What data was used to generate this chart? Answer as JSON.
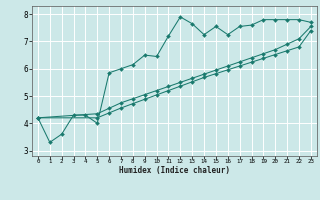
{
  "xlabel": "Humidex (Indice chaleur)",
  "bg_color": "#cce8e8",
  "grid_color": "#ffffff",
  "line_color": "#1a7a6e",
  "xlim": [
    -0.5,
    23.5
  ],
  "ylim": [
    2.8,
    8.3
  ],
  "xticks": [
    0,
    1,
    2,
    3,
    4,
    5,
    6,
    7,
    8,
    9,
    10,
    11,
    12,
    13,
    14,
    15,
    16,
    17,
    18,
    19,
    20,
    21,
    22,
    23
  ],
  "yticks": [
    3,
    4,
    5,
    6,
    7,
    8
  ],
  "line1_x": [
    0,
    1,
    2,
    3,
    4,
    5,
    6,
    7,
    8,
    9,
    10,
    11,
    12,
    13,
    14,
    15,
    16,
    17,
    18,
    19,
    20,
    21,
    22,
    23
  ],
  "line1_y": [
    4.2,
    3.3,
    3.6,
    4.3,
    4.3,
    4.0,
    5.85,
    6.0,
    6.15,
    6.5,
    6.45,
    7.2,
    7.9,
    7.65,
    7.25,
    7.55,
    7.25,
    7.55,
    7.6,
    7.8,
    7.8,
    7.8,
    7.8,
    7.7
  ],
  "line2_x": [
    0,
    5,
    6,
    7,
    8,
    9,
    10,
    11,
    12,
    13,
    14,
    15,
    16,
    17,
    18,
    19,
    20,
    21,
    22,
    23
  ],
  "line2_y": [
    4.2,
    4.35,
    4.55,
    4.75,
    4.9,
    5.05,
    5.2,
    5.35,
    5.5,
    5.65,
    5.8,
    5.95,
    6.1,
    6.25,
    6.4,
    6.55,
    6.7,
    6.9,
    7.1,
    7.55
  ],
  "line3_x": [
    0,
    5,
    6,
    7,
    8,
    9,
    10,
    11,
    12,
    13,
    14,
    15,
    16,
    17,
    18,
    19,
    20,
    21,
    22,
    23
  ],
  "line3_y": [
    4.2,
    4.2,
    4.38,
    4.56,
    4.72,
    4.88,
    5.04,
    5.2,
    5.36,
    5.52,
    5.68,
    5.82,
    5.96,
    6.1,
    6.24,
    6.38,
    6.52,
    6.66,
    6.8,
    7.4
  ]
}
